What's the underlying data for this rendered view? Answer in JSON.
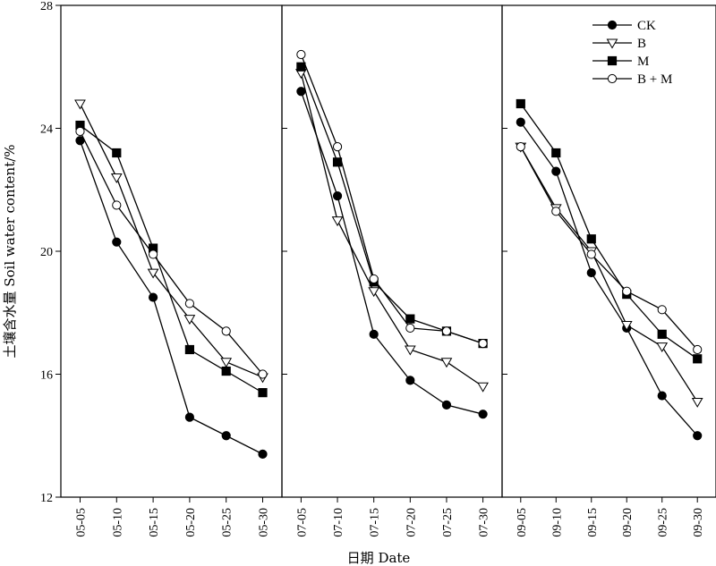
{
  "chart_data": {
    "type": "line",
    "ylabel": "土壤含水量 Soil water content/%",
    "xlabel": "日期 Date",
    "ylim": [
      12,
      28
    ],
    "yticks": [
      12,
      16,
      20,
      24,
      28
    ],
    "grid": false,
    "legend_position": "top-right",
    "series_styles": [
      {
        "name": "CK",
        "marker": "filled-circle"
      },
      {
        "name": "B",
        "marker": "open-triangle-down"
      },
      {
        "name": "M",
        "marker": "filled-square"
      },
      {
        "name": "B + M",
        "marker": "open-circle"
      }
    ],
    "panels": [
      {
        "categories": [
          "05-05",
          "05-10",
          "05-15",
          "05-20",
          "05-25",
          "05-30"
        ],
        "series": [
          {
            "name": "CK",
            "values": [
              23.6,
              20.3,
              18.5,
              14.6,
              14.0,
              13.4
            ]
          },
          {
            "name": "B",
            "values": [
              24.8,
              22.4,
              19.3,
              17.8,
              16.4,
              15.9
            ]
          },
          {
            "name": "M",
            "values": [
              24.1,
              23.2,
              20.1,
              16.8,
              16.1,
              15.4
            ]
          },
          {
            "name": "B + M",
            "values": [
              23.9,
              21.5,
              19.9,
              18.3,
              17.4,
              16.0
            ]
          }
        ]
      },
      {
        "categories": [
          "07-05",
          "07-10",
          "07-15",
          "07-20",
          "07-25",
          "07-30"
        ],
        "series": [
          {
            "name": "CK",
            "values": [
              25.2,
              21.8,
              17.3,
              15.8,
              15.0,
              14.7
            ]
          },
          {
            "name": "B",
            "values": [
              25.8,
              21.0,
              18.7,
              16.8,
              16.4,
              15.6
            ]
          },
          {
            "name": "M",
            "values": [
              26.0,
              22.9,
              19.0,
              17.8,
              17.4,
              17.0
            ]
          },
          {
            "name": "B + M",
            "values": [
              26.4,
              23.4,
              19.1,
              17.5,
              17.4,
              17.0
            ]
          }
        ]
      },
      {
        "categories": [
          "09-05",
          "09-10",
          "09-15",
          "09-20",
          "09-25",
          "09-30"
        ],
        "series": [
          {
            "name": "CK",
            "values": [
              24.2,
              22.6,
              19.3,
              17.5,
              15.3,
              14.0
            ]
          },
          {
            "name": "B",
            "values": [
              23.4,
              21.4,
              20.0,
              17.6,
              16.9,
              15.1
            ]
          },
          {
            "name": "M",
            "values": [
              24.8,
              23.2,
              20.4,
              18.6,
              17.3,
              16.5
            ]
          },
          {
            "name": "B + M",
            "values": [
              23.4,
              21.3,
              19.9,
              18.7,
              18.1,
              16.8
            ]
          }
        ]
      }
    ]
  }
}
